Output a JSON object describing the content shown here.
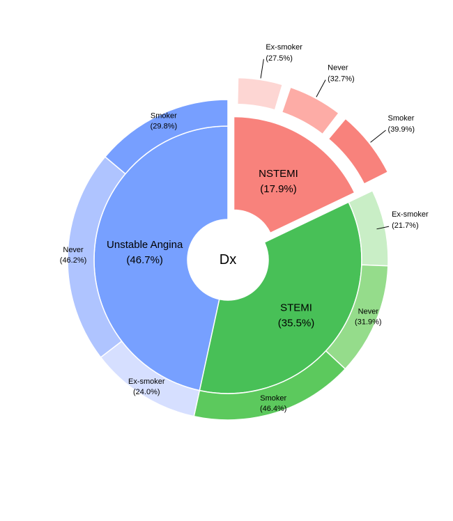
{
  "chart_data": {
    "type": "sunburst",
    "center_label": "Dx",
    "inner": [
      {
        "label": "NSTEMI",
        "percent": 17.9,
        "color": "#f8827c",
        "exploded": true
      },
      {
        "label": "STEMI",
        "percent": 35.5,
        "color": "#48c057",
        "exploded": false
      },
      {
        "label": "Unstable Angina",
        "percent": 46.7,
        "color": "#77a0ff",
        "exploded": false
      }
    ],
    "outer": [
      {
        "parent": "NSTEMI",
        "children": [
          {
            "label": "Ex-smoker",
            "percent": 27.5,
            "color": "#fdd6d3"
          },
          {
            "label": "Never",
            "percent": 32.7,
            "color": "#fdaca6"
          },
          {
            "label": "Smoker",
            "percent": 39.9,
            "color": "#f8827c"
          }
        ]
      },
      {
        "parent": "STEMI",
        "children": [
          {
            "label": "Ex-smoker",
            "percent": 21.7,
            "color": "#c9eec6"
          },
          {
            "label": "Never",
            "percent": 31.9,
            "color": "#95dc8b"
          },
          {
            "label": "Smoker",
            "percent": 46.4,
            "color": "#5cc95d"
          }
        ]
      },
      {
        "parent": "Unstable Angina",
        "children": [
          {
            "label": "Ex-smoker",
            "percent": 24.0,
            "color": "#d6dfff"
          },
          {
            "label": "Never",
            "percent": 46.2,
            "color": "#afc4ff"
          },
          {
            "label": "Smoker",
            "percent": 29.8,
            "color": "#779fff"
          }
        ]
      }
    ]
  }
}
